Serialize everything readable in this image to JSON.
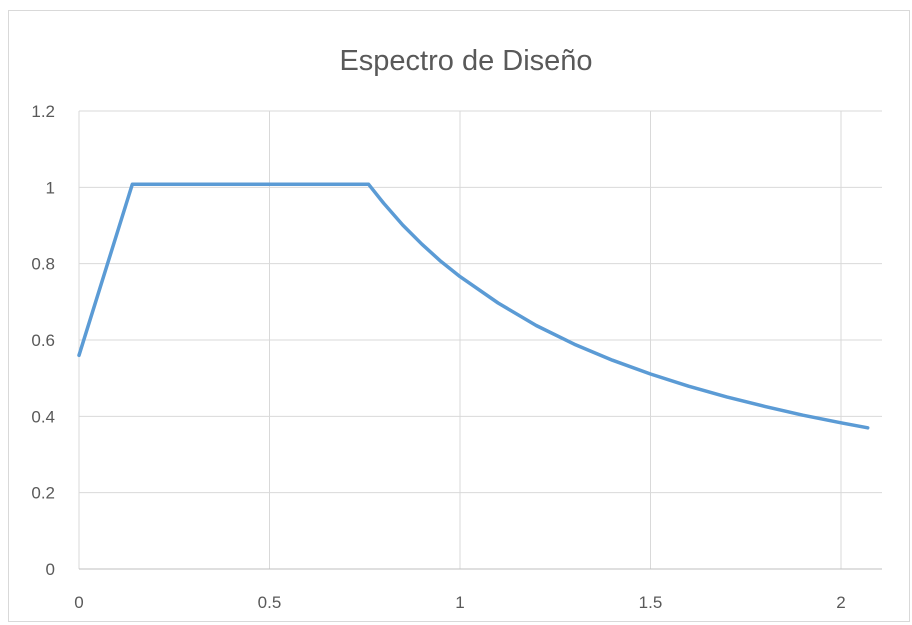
{
  "chart_data": {
    "type": "line",
    "title": "Espectro de Diseño",
    "xlabel": "",
    "ylabel": "",
    "xlim": [
      0,
      2.07
    ],
    "ylim": [
      0,
      1.2
    ],
    "x_ticks": [
      "0",
      "0.5",
      "1",
      "1.5",
      "2"
    ],
    "y_ticks": [
      "0",
      "0.2",
      "0.4",
      "0.6",
      "0.8",
      "1",
      "1.2"
    ],
    "grid": true,
    "legend": "none",
    "series": [
      {
        "color": "#5b9bd5",
        "x": [
          0,
          0.14,
          0.2,
          0.3,
          0.4,
          0.5,
          0.6,
          0.7,
          0.76,
          0.8,
          0.85,
          0.9,
          0.95,
          1.0,
          1.1,
          1.2,
          1.3,
          1.4,
          1.5,
          1.6,
          1.7,
          1.8,
          1.9,
          2.0,
          2.07
        ],
        "y": [
          0.56,
          1.008,
          1.008,
          1.008,
          1.008,
          1.008,
          1.008,
          1.008,
          1.008,
          0.958,
          0.901,
          0.851,
          0.806,
          0.766,
          0.697,
          0.638,
          0.589,
          0.547,
          0.511,
          0.479,
          0.451,
          0.426,
          0.403,
          0.383,
          0.37
        ]
      }
    ]
  }
}
